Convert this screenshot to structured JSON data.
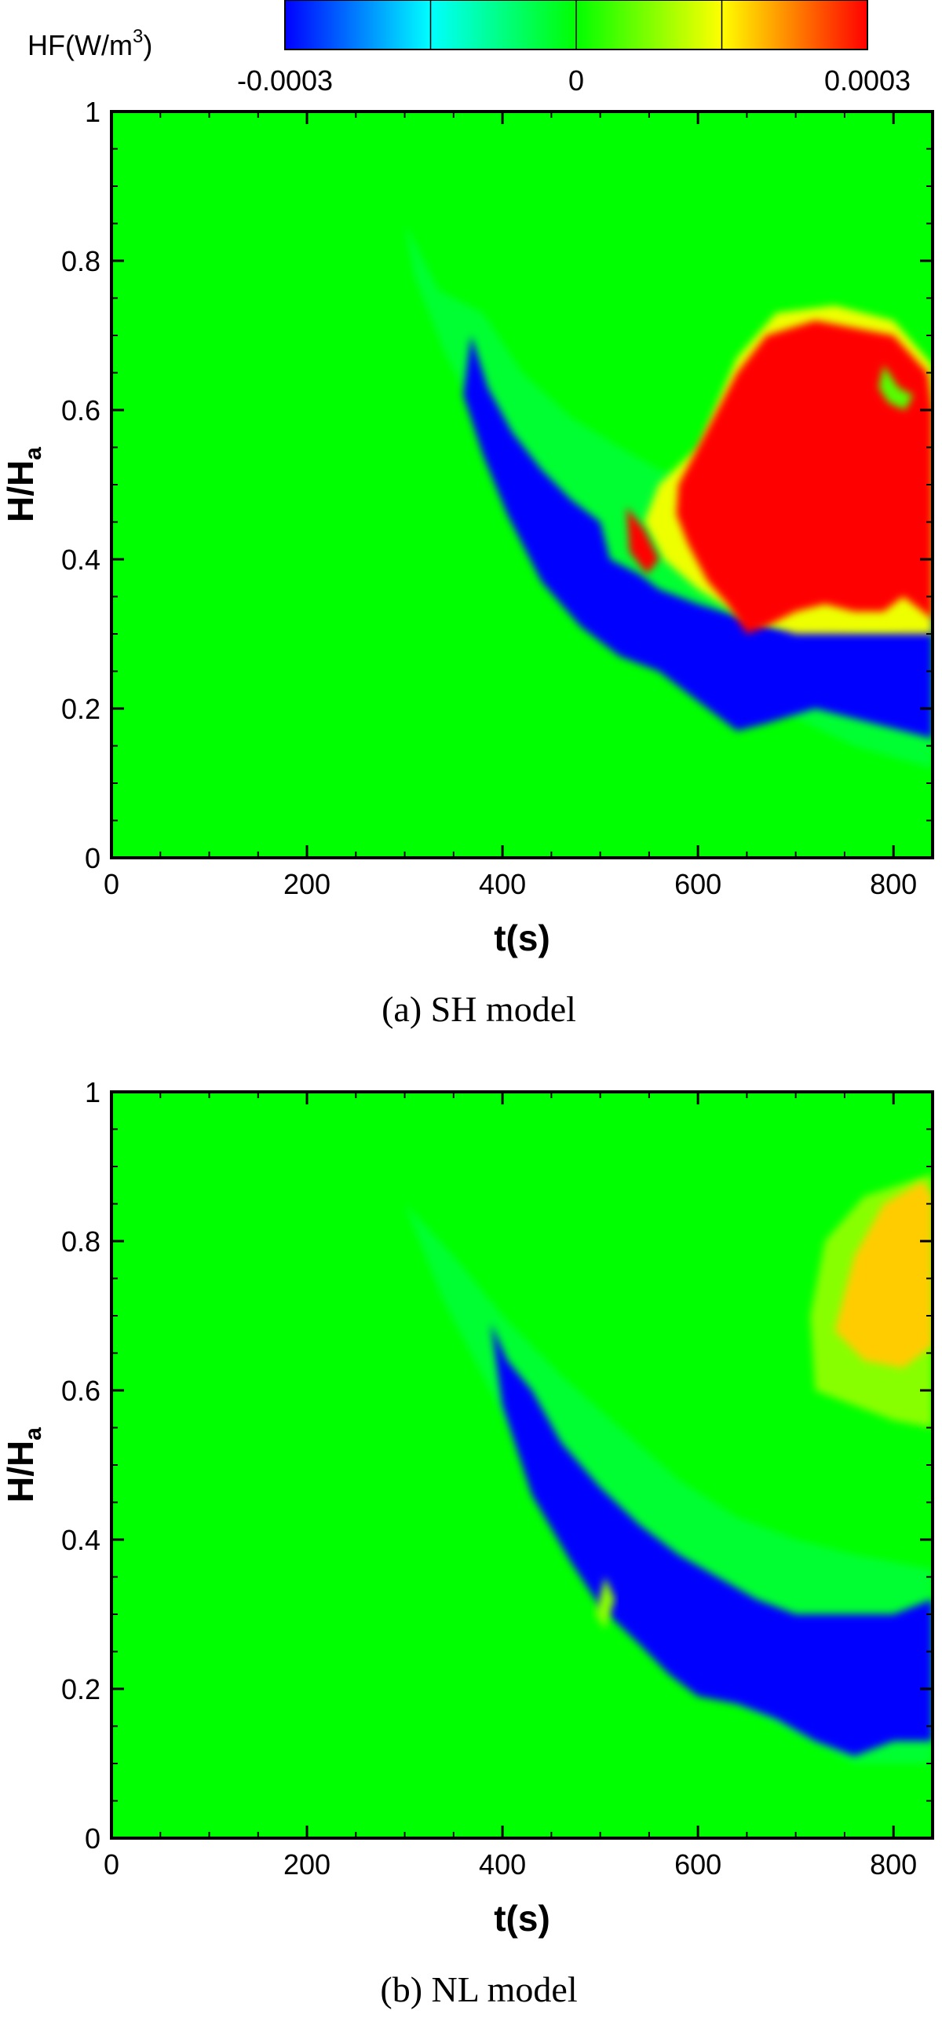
{
  "colorbar": {
    "title_main": "HF(W/m",
    "title_sup": "3",
    "title_close": ")",
    "tick_labels": [
      "-0.0003",
      "0",
      "0.0003"
    ],
    "range": [
      -0.0003,
      0.0003
    ],
    "colors": [
      "#0000ff",
      "#00ffff",
      "#00ff00",
      "#ffff00",
      "#ff0000"
    ]
  },
  "chart_data": [
    {
      "type": "heatmap",
      "caption": "(a) SH model",
      "xlabel": "t(s)",
      "ylabel_main": "H/H",
      "ylabel_sub": "a",
      "xlim": [
        0,
        840
      ],
      "ylim": [
        0,
        1
      ],
      "x_ticks": [
        0,
        200,
        400,
        600,
        800
      ],
      "y_ticks": [
        0,
        0.2,
        0.4,
        0.6,
        0.8,
        1
      ],
      "x_tick_labels": [
        "0",
        "200",
        "400",
        "600",
        "800"
      ],
      "y_tick_labels": [
        "0",
        "0.2",
        "0.4",
        "0.6",
        "0.8",
        "1"
      ],
      "background_value": 0,
      "regions": [
        {
          "value": -3e-05,
          "points": [
            [
              300,
              0.85
            ],
            [
              335,
              0.76
            ],
            [
              380,
              0.73
            ],
            [
              420,
              0.65
            ],
            [
              470,
              0.59
            ],
            [
              520,
              0.55
            ],
            [
              560,
              0.52
            ],
            [
              620,
              0.5
            ],
            [
              700,
              0.45
            ],
            [
              760,
              0.36
            ],
            [
              840,
              0.24
            ],
            [
              840,
              0.12
            ],
            [
              760,
              0.15
            ],
            [
              680,
              0.2
            ],
            [
              600,
              0.25
            ],
            [
              540,
              0.32
            ],
            [
              470,
              0.4
            ],
            [
              420,
              0.48
            ],
            [
              380,
              0.58
            ],
            [
              340,
              0.68
            ],
            [
              310,
              0.78
            ]
          ]
        },
        {
          "value": -0.0003,
          "points": [
            [
              368,
              0.7
            ],
            [
              385,
              0.63
            ],
            [
              410,
              0.57
            ],
            [
              440,
              0.52
            ],
            [
              470,
              0.48
            ],
            [
              500,
              0.45
            ],
            [
              510,
              0.4
            ],
            [
              540,
              0.38
            ],
            [
              560,
              0.36
            ],
            [
              600,
              0.34
            ],
            [
              650,
              0.32
            ],
            [
              680,
              0.31
            ],
            [
              720,
              0.32
            ],
            [
              760,
              0.31
            ],
            [
              800,
              0.31
            ],
            [
              840,
              0.33
            ],
            [
              840,
              0.16
            ],
            [
              780,
              0.18
            ],
            [
              720,
              0.2
            ],
            [
              670,
              0.18
            ],
            [
              640,
              0.17
            ],
            [
              600,
              0.21
            ],
            [
              560,
              0.25
            ],
            [
              520,
              0.27
            ],
            [
              480,
              0.31
            ],
            [
              440,
              0.37
            ],
            [
              405,
              0.46
            ],
            [
              380,
              0.54
            ],
            [
              360,
              0.62
            ]
          ]
        },
        {
          "value": 0.00014,
          "points": [
            [
              560,
              0.5
            ],
            [
              600,
              0.55
            ],
            [
              640,
              0.67
            ],
            [
              680,
              0.73
            ],
            [
              740,
              0.74
            ],
            [
              800,
              0.72
            ],
            [
              840,
              0.66
            ],
            [
              840,
              0.3
            ],
            [
              760,
              0.3
            ],
            [
              700,
              0.3
            ],
            [
              650,
              0.32
            ],
            [
              600,
              0.36
            ],
            [
              565,
              0.4
            ],
            [
              545,
              0.45
            ]
          ]
        },
        {
          "value": 0.0003,
          "points": [
            [
              580,
              0.5
            ],
            [
              600,
              0.55
            ],
            [
              640,
              0.65
            ],
            [
              670,
              0.7
            ],
            [
              720,
              0.72
            ],
            [
              760,
              0.71
            ],
            [
              800,
              0.7
            ],
            [
              835,
              0.65
            ],
            [
              840,
              0.6
            ],
            [
              840,
              0.32
            ],
            [
              810,
              0.35
            ],
            [
              790,
              0.33
            ],
            [
              760,
              0.33
            ],
            [
              730,
              0.34
            ],
            [
              700,
              0.33
            ],
            [
              670,
              0.31
            ],
            [
              650,
              0.3
            ],
            [
              630,
              0.34
            ],
            [
              610,
              0.37
            ],
            [
              590,
              0.42
            ],
            [
              578,
              0.46
            ]
          ]
        },
        {
          "value": 0.0003,
          "points": [
            [
              527,
              0.47
            ],
            [
              545,
              0.44
            ],
            [
              560,
              0.4
            ],
            [
              548,
              0.38
            ],
            [
              530,
              0.41
            ]
          ]
        },
        {
          "value": 5e-05,
          "points": [
            [
              790,
              0.66
            ],
            [
              805,
              0.63
            ],
            [
              820,
              0.62
            ],
            [
              812,
              0.6
            ],
            [
              795,
              0.61
            ],
            [
              785,
              0.63
            ]
          ]
        }
      ]
    },
    {
      "type": "heatmap",
      "caption": "(b) NL model",
      "xlabel": "t(s)",
      "ylabel_main": "H/H",
      "ylabel_sub": "a",
      "xlim": [
        0,
        840
      ],
      "ylim": [
        0,
        1
      ],
      "x_ticks": [
        0,
        200,
        400,
        600,
        800
      ],
      "y_ticks": [
        0,
        0.2,
        0.4,
        0.6,
        0.8,
        1
      ],
      "x_tick_labels": [
        "0",
        "200",
        "400",
        "600",
        "800"
      ],
      "y_tick_labels": [
        "0",
        "0.2",
        "0.4",
        "0.6",
        "0.8",
        "1"
      ],
      "background_value": 0,
      "regions": [
        {
          "value": -3e-05,
          "points": [
            [
              300,
              0.85
            ],
            [
              350,
              0.78
            ],
            [
              400,
              0.7
            ],
            [
              460,
              0.62
            ],
            [
              520,
              0.55
            ],
            [
              580,
              0.48
            ],
            [
              640,
              0.43
            ],
            [
              700,
              0.4
            ],
            [
              760,
              0.38
            ],
            [
              840,
              0.36
            ],
            [
              840,
              0.1
            ],
            [
              760,
              0.1
            ],
            [
              700,
              0.14
            ],
            [
              640,
              0.18
            ],
            [
              580,
              0.22
            ],
            [
              520,
              0.3
            ],
            [
              470,
              0.4
            ],
            [
              420,
              0.52
            ],
            [
              380,
              0.62
            ],
            [
              340,
              0.72
            ]
          ]
        },
        {
          "value": -0.0003,
          "points": [
            [
              388,
              0.69
            ],
            [
              405,
              0.64
            ],
            [
              430,
              0.6
            ],
            [
              460,
              0.53
            ],
            [
              500,
              0.47
            ],
            [
              540,
              0.42
            ],
            [
              580,
              0.38
            ],
            [
              620,
              0.35
            ],
            [
              660,
              0.32
            ],
            [
              700,
              0.3
            ],
            [
              760,
              0.3
            ],
            [
              800,
              0.3
            ],
            [
              840,
              0.32
            ],
            [
              840,
              0.13
            ],
            [
              800,
              0.13
            ],
            [
              760,
              0.11
            ],
            [
              720,
              0.13
            ],
            [
              680,
              0.16
            ],
            [
              640,
              0.18
            ],
            [
              600,
              0.19
            ],
            [
              570,
              0.22
            ],
            [
              540,
              0.26
            ],
            [
              500,
              0.31
            ],
            [
              470,
              0.37
            ],
            [
              430,
              0.46
            ],
            [
              400,
              0.58
            ]
          ]
        },
        {
          "value": 8e-05,
          "points": [
            [
              720,
              0.6
            ],
            [
              715,
              0.7
            ],
            [
              730,
              0.8
            ],
            [
              770,
              0.86
            ],
            [
              840,
              0.89
            ],
            [
              840,
              0.55
            ],
            [
              800,
              0.56
            ],
            [
              760,
              0.58
            ]
          ]
        },
        {
          "value": 0.00018,
          "points": [
            [
              740,
              0.68
            ],
            [
              760,
              0.78
            ],
            [
              790,
              0.85
            ],
            [
              830,
              0.88
            ],
            [
              840,
              0.86
            ],
            [
              840,
              0.66
            ],
            [
              810,
              0.63
            ],
            [
              770,
              0.64
            ]
          ]
        },
        {
          "value": 8e-05,
          "points": [
            [
              495,
              0.3
            ],
            [
              505,
              0.35
            ],
            [
              515,
              0.32
            ],
            [
              505,
              0.28
            ]
          ]
        }
      ]
    }
  ]
}
